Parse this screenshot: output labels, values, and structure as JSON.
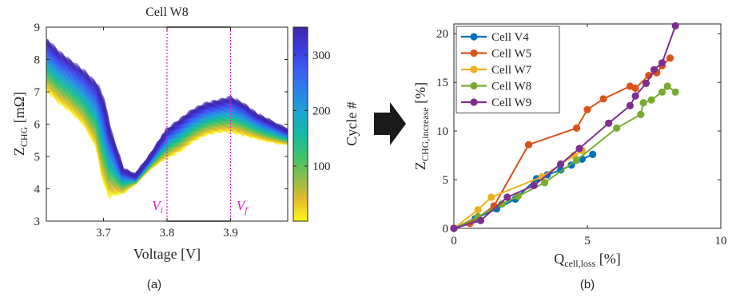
{
  "arrow": {
    "color": "#1a1a1a",
    "icon": "right-arrow-icon"
  },
  "chart_data": [
    {
      "type": "line",
      "title": "Cell W8",
      "xlabel": "Voltage [V]",
      "ylabel_main": "Z",
      "ylabel_sub": "CHG",
      "ylabel_unit": " [mΩ]",
      "xlim": [
        3.61,
        3.99
      ],
      "ylim": [
        3,
        9
      ],
      "xticks": [
        3.7,
        3.8,
        3.9
      ],
      "xtick_labels": [
        "3.7",
        "3.8",
        "3.9"
      ],
      "yticks": [
        3,
        4,
        5,
        6,
        7,
        8,
        9
      ],
      "ytick_labels": [
        "3",
        "4",
        "5",
        "6",
        "7",
        "8",
        "9"
      ],
      "grid": false,
      "series_description_count": 350,
      "curve_first_cycle": {
        "x": [
          3.61,
          3.63,
          3.65,
          3.67,
          3.69,
          3.7,
          3.71,
          3.73,
          3.75,
          3.77,
          3.79,
          3.8,
          3.82,
          3.84,
          3.86,
          3.88,
          3.9,
          3.92,
          3.94,
          3.96,
          3.99
        ],
        "y": [
          7.1,
          6.7,
          6.4,
          6.0,
          5.3,
          4.3,
          3.8,
          3.9,
          4.2,
          4.6,
          4.9,
          5.0,
          5.2,
          5.5,
          5.7,
          5.8,
          5.8,
          5.7,
          5.6,
          5.5,
          5.4
        ]
      },
      "curve_last_cycle": {
        "x": [
          3.61,
          3.63,
          3.65,
          3.67,
          3.69,
          3.7,
          3.71,
          3.73,
          3.75,
          3.77,
          3.79,
          3.8,
          3.82,
          3.84,
          3.86,
          3.88,
          3.9,
          3.92,
          3.94,
          3.96,
          3.99
        ],
        "y": [
          8.6,
          8.2,
          7.9,
          7.6,
          7.2,
          6.7,
          5.8,
          4.6,
          4.4,
          4.9,
          5.5,
          5.8,
          6.1,
          6.4,
          6.6,
          6.7,
          6.8,
          6.6,
          6.3,
          6.1,
          5.8
        ]
      },
      "window": {
        "v_start": 3.8,
        "v_end": 3.9,
        "y_low": 3,
        "y_high": 9,
        "color": "#e31ccf"
      },
      "annotations": [
        {
          "text_main": "V",
          "text_sub": "i",
          "x": 3.785,
          "y": 3.35
        },
        {
          "text_main": "V",
          "text_sub": "f",
          "x": 3.918,
          "y": 3.35
        }
      ],
      "colorbar": {
        "label": "Cycle #",
        "range": [
          1,
          350
        ],
        "ticks": [
          100,
          200,
          300
        ],
        "tick_labels": [
          "100",
          "200",
          "300"
        ],
        "colors": [
          "#f9fb0e",
          "#e6ba2c",
          "#8cbf4a",
          "#3fc36a",
          "#16b9a1",
          "#1ca6d0",
          "#2a83e8",
          "#3a5ef2",
          "#3f3ae0",
          "#3e26a8"
        ]
      },
      "panel_label": "(a)"
    },
    {
      "type": "line",
      "xlabel_main": "Q",
      "xlabel_sub": "cell,loss",
      "xlabel_unit": " [%]",
      "ylabel_main": "Z",
      "ylabel_sub": "CHG,increase",
      "ylabel_unit": " [%]",
      "xlim": [
        0,
        10
      ],
      "ylim": [
        0,
        21
      ],
      "xticks": [
        0,
        5,
        10
      ],
      "xtick_labels": [
        "0",
        "5",
        "10"
      ],
      "yticks": [
        0,
        5,
        10,
        15,
        20
      ],
      "ytick_labels": [
        "0",
        "5",
        "10",
        "15",
        "20"
      ],
      "grid": false,
      "legend": "top-left",
      "series": [
        {
          "name": "Cell V4",
          "color": "#0072bd",
          "x": [
            0,
            0.8,
            1.6,
            2.3,
            3.1,
            3.5,
            4.0,
            4.4,
            4.8,
            5.2
          ],
          "y": [
            0,
            1.0,
            2.0,
            3.0,
            5.1,
            5.5,
            6.0,
            6.5,
            7.1,
            7.6
          ]
        },
        {
          "name": "Cell W5",
          "color": "#d95319",
          "x": [
            0,
            0.6,
            1.5,
            2.8,
            4.6,
            5.0,
            5.6,
            6.6,
            6.8,
            7.3,
            7.6,
            7.8,
            8.1
          ],
          "y": [
            0,
            0.5,
            2.3,
            8.6,
            10.3,
            12.2,
            13.3,
            14.6,
            14.4,
            15.7,
            16.0,
            16.7,
            17.5
          ]
        },
        {
          "name": "Cell W7",
          "color": "#edb120",
          "x": [
            0,
            0.9,
            1.4,
            3.3,
            4.5,
            4.8
          ],
          "y": [
            0,
            1.9,
            3.2,
            5.3,
            7.5,
            8.0
          ]
        },
        {
          "name": "Cell W8",
          "color": "#77ac30",
          "x": [
            0,
            0.9,
            1.8,
            2.4,
            3.4,
            4.6,
            6.1,
            7.0,
            7.1,
            7.4,
            7.8,
            8.0,
            8.3
          ],
          "y": [
            0,
            1.2,
            2.5,
            3.3,
            4.7,
            7.0,
            10.3,
            11.7,
            12.9,
            13.2,
            14.0,
            14.6,
            14.0
          ]
        },
        {
          "name": "Cell W9",
          "color": "#7e2f8e",
          "x": [
            0,
            1.0,
            2.0,
            3.0,
            4.0,
            4.7,
            5.8,
            6.6,
            6.8,
            7.2,
            7.5,
            7.8,
            8.3
          ],
          "y": [
            0,
            0.8,
            3.2,
            4.4,
            6.6,
            8.2,
            10.8,
            12.6,
            13.6,
            14.9,
            16.3,
            17.0,
            20.8
          ]
        }
      ],
      "panel_label": "(b)"
    }
  ]
}
